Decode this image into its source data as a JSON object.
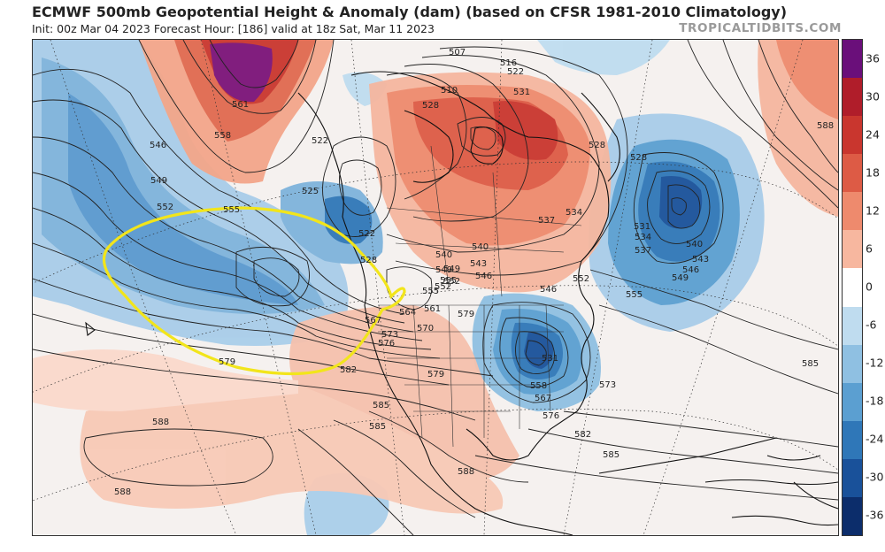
{
  "header": {
    "title": "ECMWF 500mb Geopotential Height & Anomaly (dam) (based on CFSR 1981-2010 Climatology)",
    "subtitle": "Init: 00z Mar 04 2023   Forecast Hour: [186]   valid at 18z Sat, Mar 11 2023",
    "brand": "TROPICALTIDBITS.COM"
  },
  "colorbar": {
    "ticks": [
      "36",
      "30",
      "24",
      "18",
      "12",
      "6",
      "0",
      "-6",
      "-12",
      "-18",
      "-24",
      "-30",
      "-36"
    ],
    "colors": [
      "#6a0f7a",
      "#b01d2a",
      "#c9362e",
      "#dd5b45",
      "#ee8a6d",
      "#f7b79f",
      "#ffffff",
      "#bfdcef",
      "#8fc0e2",
      "#5b9fd1",
      "#2f77b8",
      "#19519a",
      "#0c2d6b"
    ]
  },
  "contour_labels": [
    {
      "text": "507"
    },
    {
      "text": "516"
    },
    {
      "text": "522"
    },
    {
      "text": "531"
    },
    {
      "text": "510"
    },
    {
      "text": "528"
    },
    {
      "text": "528"
    },
    {
      "text": "561"
    },
    {
      "text": "558"
    },
    {
      "text": "546"
    },
    {
      "text": "549"
    },
    {
      "text": "552"
    },
    {
      "text": "555"
    },
    {
      "text": "522"
    },
    {
      "text": "525"
    },
    {
      "text": "522"
    },
    {
      "text": "528"
    },
    {
      "text": "588"
    },
    {
      "text": "528"
    },
    {
      "text": "531"
    },
    {
      "text": "534"
    },
    {
      "text": "537"
    },
    {
      "text": "540"
    },
    {
      "text": "543"
    },
    {
      "text": "546"
    },
    {
      "text": "549"
    },
    {
      "text": "555"
    },
    {
      "text": "552"
    },
    {
      "text": "555"
    },
    {
      "text": "537"
    },
    {
      "text": "534"
    },
    {
      "text": "540"
    },
    {
      "text": "543"
    },
    {
      "text": "546"
    },
    {
      "text": "549"
    },
    {
      "text": "552"
    },
    {
      "text": "555"
    },
    {
      "text": "561"
    },
    {
      "text": "564"
    },
    {
      "text": "567"
    },
    {
      "text": "570"
    },
    {
      "text": "573"
    },
    {
      "text": "576"
    },
    {
      "text": "579"
    },
    {
      "text": "582"
    },
    {
      "text": "585"
    },
    {
      "text": "585"
    },
    {
      "text": "579"
    },
    {
      "text": "531"
    },
    {
      "text": "558"
    },
    {
      "text": "567"
    },
    {
      "text": "576"
    },
    {
      "text": "573"
    },
    {
      "text": "582"
    },
    {
      "text": "585"
    },
    {
      "text": "585"
    },
    {
      "text": "588"
    },
    {
      "text": "588"
    },
    {
      "text": "588"
    },
    {
      "text": "579"
    },
    {
      "text": "540"
    },
    {
      "text": "552"
    },
    {
      "text": "549"
    },
    {
      "text": "546"
    }
  ]
}
